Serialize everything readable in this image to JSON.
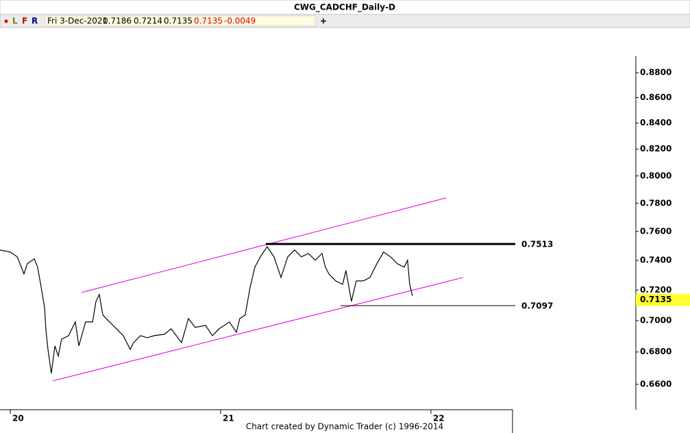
{
  "chart_data": {
    "type": "line",
    "title": "CWG_CADCHF_Daily-D",
    "toolbar": {
      "letters": [
        "L",
        "F",
        "R"
      ],
      "add": "+"
    },
    "info": {
      "date": "Fri 3-Dec-2021",
      "open": 0.7186,
      "high": 0.7214,
      "low": 0.7135,
      "close": 0.7135,
      "change": -0.0049
    },
    "footer": "Chart created by Dynamic Trader  (c) 1996-2014",
    "log_scale": true,
    "xlim": [
      19.951,
      22.388
    ],
    "xticks": [
      20,
      21,
      22
    ],
    "ylim": [
      0.6447,
      0.8935
    ],
    "yticks": [
      {
        "value": 0.66,
        "label": "0.6600"
      },
      {
        "value": 0.68,
        "label": "0.6800"
      },
      {
        "value": 0.7,
        "label": "0.7000"
      },
      {
        "value": 0.72,
        "label": "0.7200"
      },
      {
        "value": 0.74,
        "label": "0.7400"
      },
      {
        "value": 0.76,
        "label": "0.7600"
      },
      {
        "value": 0.78,
        "label": "0.7800"
      },
      {
        "value": 0.8,
        "label": "0.8000"
      },
      {
        "value": 0.82,
        "label": "0.8200"
      },
      {
        "value": 0.84,
        "label": "0.8400"
      },
      {
        "value": 0.86,
        "label": "0.8600"
      },
      {
        "value": 0.88,
        "label": "0.8800"
      }
    ],
    "series": [
      {
        "name": "CADCHF",
        "color": "#000000",
        "x": [
          19.951,
          20.0,
          20.033,
          20.065,
          20.081,
          20.114,
          20.13,
          20.147,
          20.163,
          20.169,
          20.179,
          20.195,
          20.212,
          20.228,
          20.244,
          20.277,
          20.309,
          20.326,
          20.358,
          20.391,
          20.407,
          20.423,
          20.44,
          20.472,
          20.505,
          20.537,
          20.57,
          20.586,
          20.619,
          20.651,
          20.684,
          20.733,
          20.765,
          20.814,
          20.847,
          20.879,
          20.928,
          20.961,
          20.993,
          21.042,
          21.075,
          21.091,
          21.117,
          21.14,
          21.163,
          21.189,
          21.221,
          21.254,
          21.287,
          21.319,
          21.352,
          21.384,
          21.417,
          21.45,
          21.482,
          21.498,
          21.515,
          21.547,
          21.58,
          21.596,
          21.622,
          21.645,
          21.678,
          21.71,
          21.743,
          21.775,
          21.808,
          21.84,
          21.873,
          21.889,
          21.899,
          21.912
        ],
        "values": [
          0.7471,
          0.7457,
          0.7424,
          0.7308,
          0.7377,
          0.741,
          0.7354,
          0.7216,
          0.708,
          0.6947,
          0.6816,
          0.6667,
          0.6838,
          0.6774,
          0.6881,
          0.6903,
          0.6991,
          0.6838,
          0.6991,
          0.6991,
          0.7125,
          0.717,
          0.7036,
          0.6991,
          0.6947,
          0.6903,
          0.6816,
          0.6859,
          0.6903,
          0.689,
          0.6903,
          0.6912,
          0.6947,
          0.6859,
          0.7013,
          0.6956,
          0.6969,
          0.6903,
          0.6947,
          0.6991,
          0.6925,
          0.7013,
          0.7036,
          0.7216,
          0.7354,
          0.7424,
          0.7494,
          0.7424,
          0.7284,
          0.7424,
          0.7471,
          0.7424,
          0.7447,
          0.7401,
          0.7447,
          0.7354,
          0.7308,
          0.7261,
          0.7238,
          0.7331,
          0.7125,
          0.7261,
          0.7261,
          0.7284,
          0.7377,
          0.7457,
          0.7424,
          0.7377,
          0.7354,
          0.7401,
          0.7238,
          0.7161
        ]
      }
    ],
    "trendlines": [
      {
        "color": "#e000e0",
        "x": [
          20.339,
          22.072
        ],
        "y": [
          0.7184,
          0.7839
        ]
      },
      {
        "color": "#e000e0",
        "x": [
          20.202,
          22.153
        ],
        "y": [
          0.6621,
          0.7284
        ]
      }
    ],
    "levels": [
      {
        "value": 0.7513,
        "x": [
          21.215,
          22.401
        ],
        "color": "#000000",
        "width": 3
      },
      {
        "value": 0.7097,
        "x": [
          21.57,
          22.401
        ],
        "color": "#000000",
        "width": 1
      }
    ],
    "last_price": {
      "value": 0.7135,
      "color": "#ffff33"
    }
  }
}
